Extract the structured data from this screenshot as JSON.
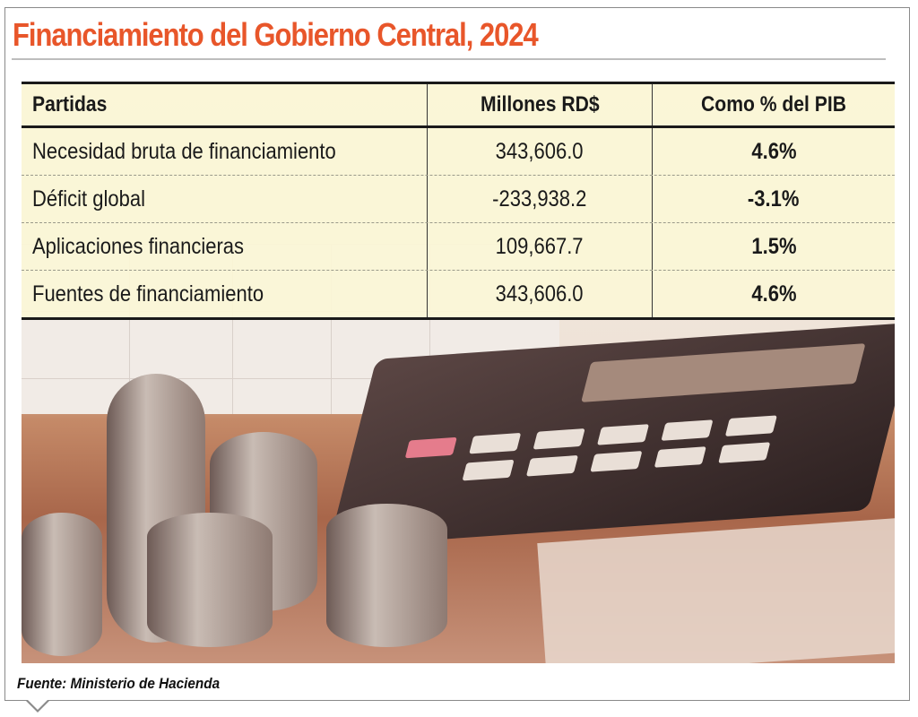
{
  "title": "Financiamiento del Gobierno Central, 2024",
  "table": {
    "headers": [
      "Partidas",
      "Millones RD$",
      "Como % del PIB"
    ],
    "rows": [
      {
        "partida": "Necesidad bruta de financiamiento",
        "millones": "343,606.0",
        "pib": "4.6%"
      },
      {
        "partida": "Déficit global",
        "millones": "-233,938.2",
        "pib": "-3.1%"
      },
      {
        "partida": "Aplicaciones financieras",
        "millones": "109,667.7",
        "pib": "1.5%"
      },
      {
        "partida": "Fuentes de financiamiento",
        "millones": "343,606.0",
        "pib": "4.6%"
      }
    ]
  },
  "source": "Fuente: Ministerio de Hacienda",
  "colors": {
    "title": "#e8562a",
    "table_bg": "#fbf6d6"
  }
}
